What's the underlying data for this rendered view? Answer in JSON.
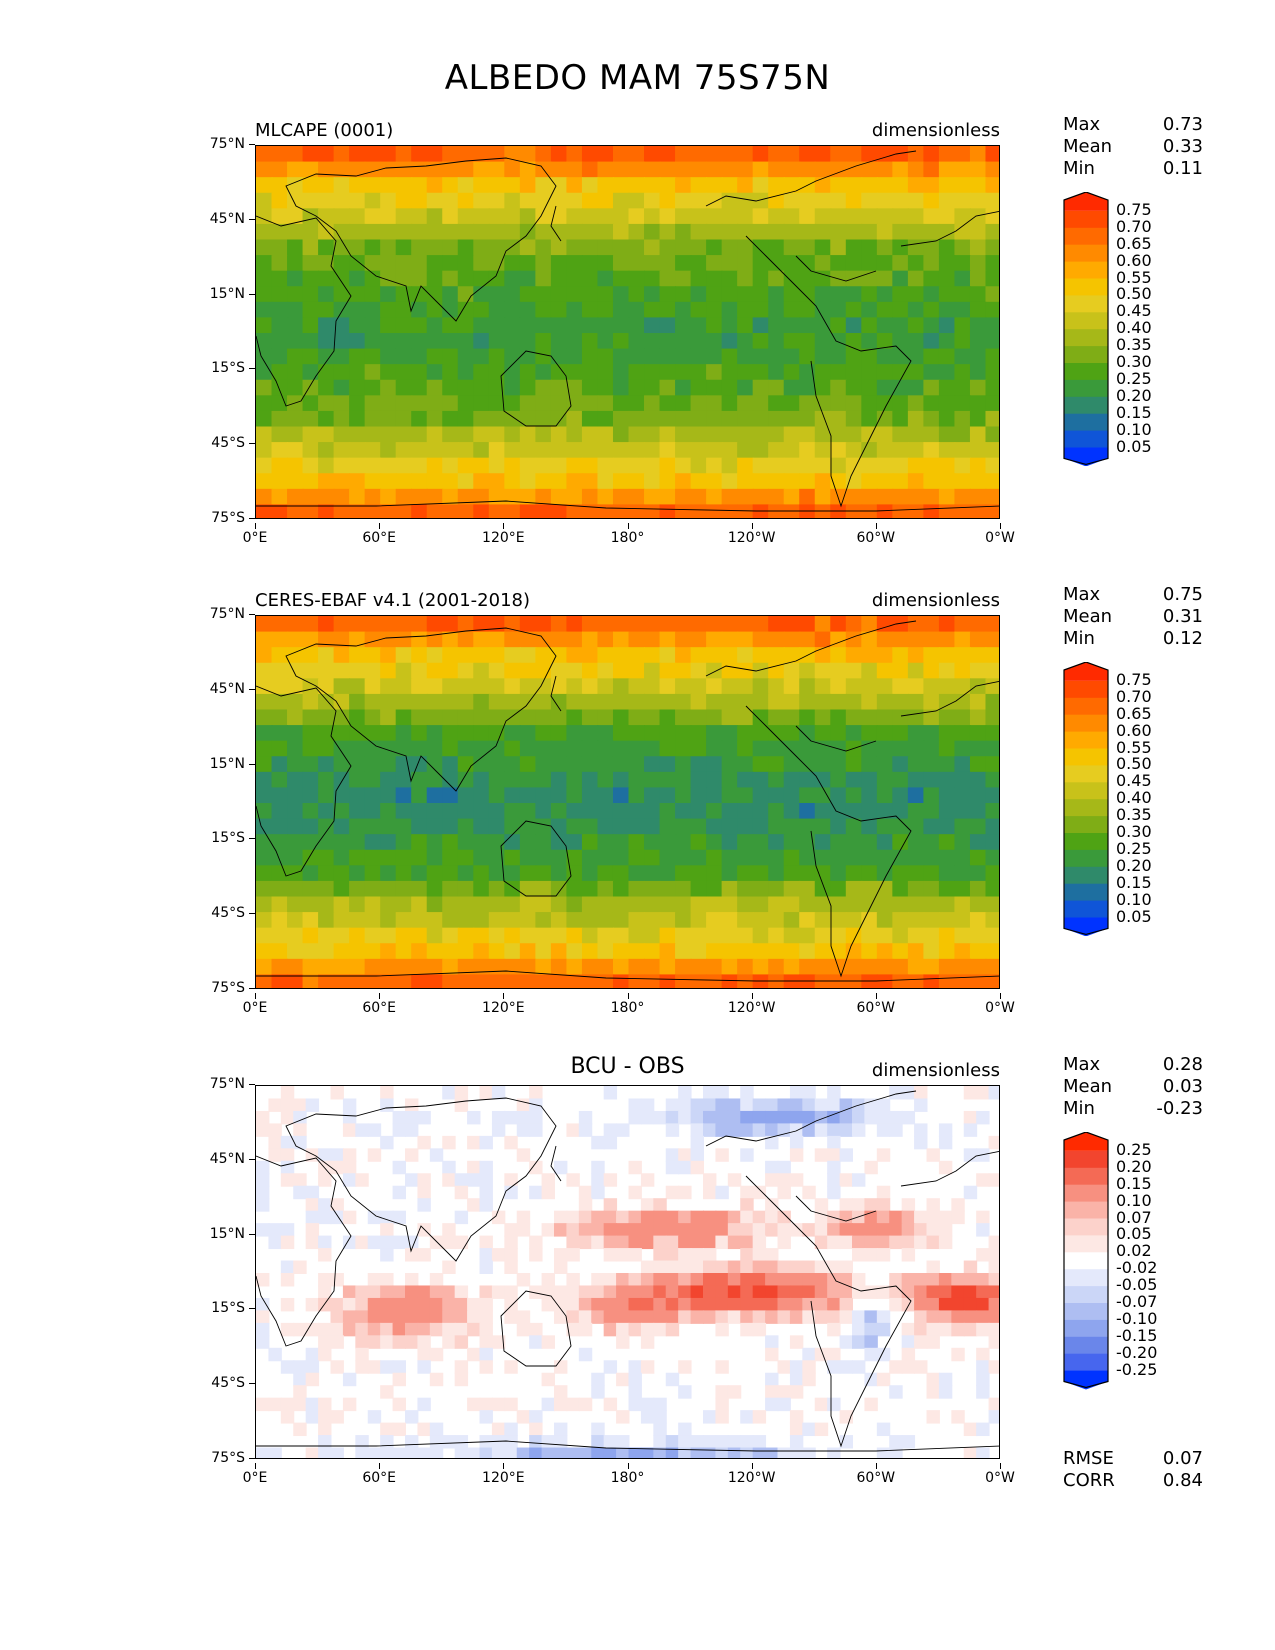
{
  "title": "ALBEDO MAM 75S75N",
  "lat_ticks": [
    "75°N",
    "45°N",
    "15°N",
    "15°S",
    "45°S",
    "75°S"
  ],
  "lon_ticks": [
    "0°E",
    "60°E",
    "120°E",
    "180°",
    "120°W",
    "60°W",
    "0°W"
  ],
  "panels": [
    {
      "title_left": "MLCAPE (0001)",
      "title_center": "",
      "units": "dimensionless",
      "stats": {
        "max_label": "Max",
        "max": "0.73",
        "mean_label": "Mean",
        "mean": "0.33",
        "min_label": "Min",
        "min": "0.11"
      },
      "colorbar": {
        "levels": [
          "0.75",
          "0.70",
          "0.65",
          "0.60",
          "0.55",
          "0.50",
          "0.45",
          "0.40",
          "0.35",
          "0.30",
          "0.25",
          "0.20",
          "0.15",
          "0.10",
          "0.05"
        ],
        "colors": [
          "#ff2a00",
          "#ff4a00",
          "#ff6a00",
          "#ff8a00",
          "#ffaa00",
          "#f5c400",
          "#e6cc20",
          "#c8c21a",
          "#a6b818",
          "#7fad16",
          "#4fa314",
          "#3a9a3a",
          "#2f8a6a",
          "#1e6fa0",
          "#0f55d8",
          "#0033ff"
        ]
      }
    },
    {
      "title_left": "CERES-EBAF v4.1 (2001-2018)",
      "title_center": "",
      "units": "dimensionless",
      "stats": {
        "max_label": "Max",
        "max": "0.75",
        "mean_label": "Mean",
        "mean": "0.31",
        "min_label": "Min",
        "min": "0.12"
      },
      "colorbar": {
        "levels": [
          "0.75",
          "0.70",
          "0.65",
          "0.60",
          "0.55",
          "0.50",
          "0.45",
          "0.40",
          "0.35",
          "0.30",
          "0.25",
          "0.20",
          "0.15",
          "0.10",
          "0.05"
        ],
        "colors": [
          "#ff2a00",
          "#ff4a00",
          "#ff6a00",
          "#ff8a00",
          "#ffaa00",
          "#f5c400",
          "#e6cc20",
          "#c8c21a",
          "#a6b818",
          "#7fad16",
          "#4fa314",
          "#3a9a3a",
          "#2f8a6a",
          "#1e6fa0",
          "#0f55d8",
          "#0033ff"
        ]
      }
    },
    {
      "title_left": "",
      "title_center": "BCU - OBS",
      "units": "dimensionless",
      "stats": {
        "max_label": "Max",
        "max": "0.28",
        "mean_label": "Mean",
        "mean": "0.03",
        "min_label": "Min",
        "min": "-0.23"
      },
      "colorbar": {
        "levels": [
          "0.25",
          "0.20",
          "0.15",
          "0.10",
          "0.07",
          "0.05",
          "0.02",
          "-0.02",
          "-0.05",
          "-0.07",
          "-0.10",
          "-0.15",
          "-0.20",
          "-0.25"
        ],
        "colors": [
          "#ff2a00",
          "#f2452e",
          "#f46a55",
          "#f79080",
          "#fab3a8",
          "#fcd2cb",
          "#fde8e4",
          "#ffffff",
          "#e4e9fb",
          "#cbd6f7",
          "#aebef2",
          "#8ea5ee",
          "#6a86ea",
          "#4766ee",
          "#0033ff"
        ]
      },
      "rmse_label": "RMSE",
      "rmse": "0.07",
      "corr_label": "CORR",
      "corr": "0.84"
    }
  ]
}
